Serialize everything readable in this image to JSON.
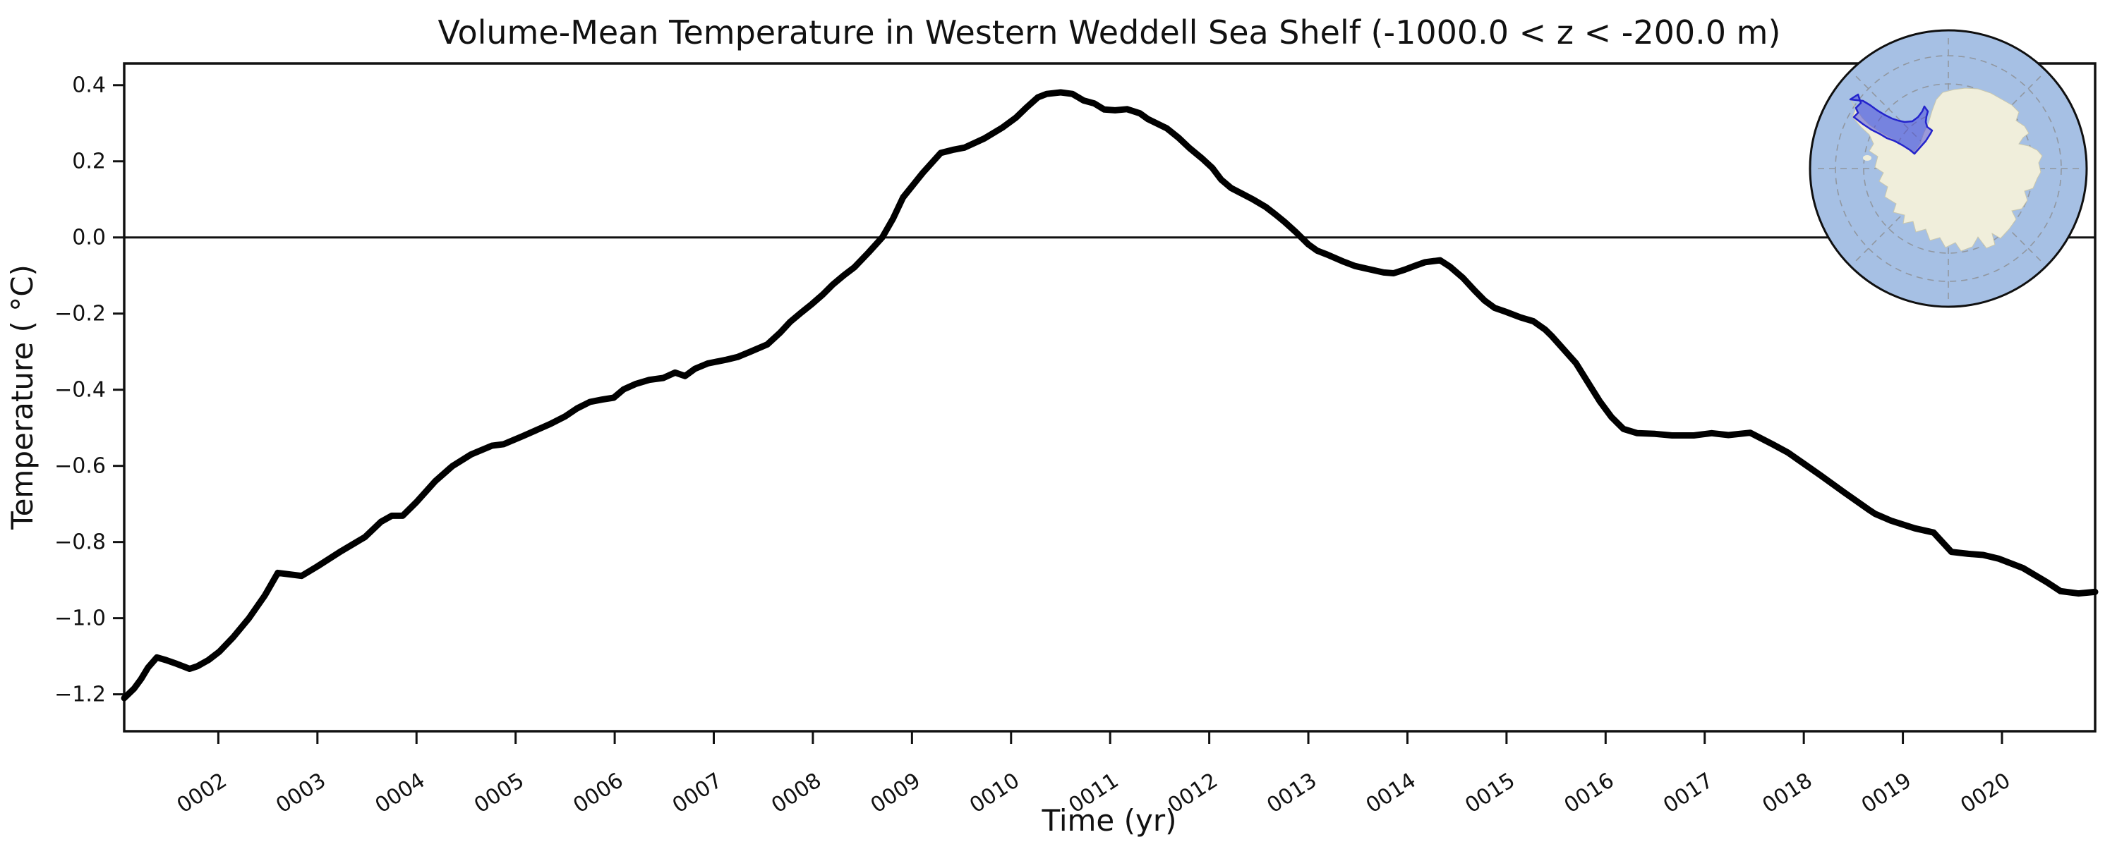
{
  "chart_data": {
    "type": "line",
    "title": "Volume-Mean Temperature in Western Weddell Sea Shelf (-1000.0 < z < -200.0 m)",
    "xlabel": "Time (yr)",
    "ylabel": "Temperature ( °C)",
    "xlim": [
      1.05,
      20.94
    ],
    "ylim": [
      -1.297,
      0.457
    ],
    "grid": false,
    "legend": "none",
    "zero_reference_line": 0.0,
    "line_color": "#000000",
    "x_ticks": [
      2,
      3,
      4,
      5,
      6,
      7,
      8,
      9,
      10,
      11,
      12,
      13,
      14,
      15,
      16,
      17,
      18,
      19,
      20
    ],
    "x_tick_labels": [
      "0002",
      "0003",
      "0004",
      "0005",
      "0006",
      "0007",
      "0008",
      "0009",
      "0010",
      "0011",
      "0012",
      "0013",
      "0014",
      "0015",
      "0016",
      "0017",
      "0018",
      "0019",
      "0020"
    ],
    "y_ticks": [
      0.4,
      0.2,
      0.0,
      -0.2,
      -0.4,
      -0.6,
      -0.8,
      -1.0,
      -1.2
    ],
    "y_tick_labels": [
      "0.4",
      "0.2",
      "0.0",
      "−0.2",
      "−0.4",
      "−0.6",
      "−0.8",
      "−1.0",
      "−1.2"
    ],
    "series": [
      {
        "name": "volume-mean temperature",
        "points": [
          [
            1.05,
            -1.21
          ],
          [
            1.15,
            -1.185
          ],
          [
            1.22,
            -1.16
          ],
          [
            1.29,
            -1.13
          ],
          [
            1.38,
            -1.103
          ],
          [
            1.47,
            -1.11
          ],
          [
            1.58,
            -1.12
          ],
          [
            1.71,
            -1.133
          ],
          [
            1.79,
            -1.126
          ],
          [
            1.9,
            -1.11
          ],
          [
            2.01,
            -1.088
          ],
          [
            2.15,
            -1.05
          ],
          [
            2.31,
            -1.0
          ],
          [
            2.47,
            -0.94
          ],
          [
            2.6,
            -0.881
          ],
          [
            2.72,
            -0.885
          ],
          [
            2.84,
            -0.889
          ],
          [
            3.0,
            -0.864
          ],
          [
            3.24,
            -0.824
          ],
          [
            3.48,
            -0.787
          ],
          [
            3.64,
            -0.747
          ],
          [
            3.75,
            -0.731
          ],
          [
            3.86,
            -0.731
          ],
          [
            4.0,
            -0.695
          ],
          [
            4.19,
            -0.64
          ],
          [
            4.36,
            -0.601
          ],
          [
            4.55,
            -0.57
          ],
          [
            4.76,
            -0.547
          ],
          [
            4.88,
            -0.543
          ],
          [
            5.07,
            -0.522
          ],
          [
            5.35,
            -0.49
          ],
          [
            5.5,
            -0.47
          ],
          [
            5.62,
            -0.449
          ],
          [
            5.75,
            -0.432
          ],
          [
            5.87,
            -0.426
          ],
          [
            5.99,
            -0.421
          ],
          [
            6.09,
            -0.399
          ],
          [
            6.21,
            -0.385
          ],
          [
            6.35,
            -0.374
          ],
          [
            6.49,
            -0.369
          ],
          [
            6.61,
            -0.355
          ],
          [
            6.71,
            -0.364
          ],
          [
            6.81,
            -0.345
          ],
          [
            6.94,
            -0.331
          ],
          [
            7.13,
            -0.321
          ],
          [
            7.24,
            -0.314
          ],
          [
            7.37,
            -0.3
          ],
          [
            7.54,
            -0.281
          ],
          [
            7.67,
            -0.25
          ],
          [
            7.77,
            -0.222
          ],
          [
            7.88,
            -0.198
          ],
          [
            7.99,
            -0.175
          ],
          [
            8.1,
            -0.15
          ],
          [
            8.2,
            -0.124
          ],
          [
            8.31,
            -0.1
          ],
          [
            8.42,
            -0.078
          ],
          [
            8.56,
            -0.04
          ],
          [
            8.7,
            0.0
          ],
          [
            8.81,
            0.05
          ],
          [
            8.91,
            0.105
          ],
          [
            9.11,
            0.17
          ],
          [
            9.29,
            0.222
          ],
          [
            9.41,
            0.23
          ],
          [
            9.53,
            0.236
          ],
          [
            9.73,
            0.26
          ],
          [
            9.91,
            0.288
          ],
          [
            10.05,
            0.315
          ],
          [
            10.15,
            0.34
          ],
          [
            10.27,
            0.368
          ],
          [
            10.36,
            0.377
          ],
          [
            10.5,
            0.381
          ],
          [
            10.62,
            0.377
          ],
          [
            10.73,
            0.36
          ],
          [
            10.84,
            0.352
          ],
          [
            10.94,
            0.336
          ],
          [
            11.05,
            0.334
          ],
          [
            11.17,
            0.337
          ],
          [
            11.3,
            0.326
          ],
          [
            11.38,
            0.311
          ],
          [
            11.57,
            0.287
          ],
          [
            11.69,
            0.262
          ],
          [
            11.8,
            0.235
          ],
          [
            11.93,
            0.207
          ],
          [
            12.03,
            0.183
          ],
          [
            12.12,
            0.152
          ],
          [
            12.22,
            0.13
          ],
          [
            12.33,
            0.115
          ],
          [
            12.44,
            0.1
          ],
          [
            12.57,
            0.08
          ],
          [
            12.67,
            0.06
          ],
          [
            12.76,
            0.041
          ],
          [
            12.87,
            0.015
          ],
          [
            13.0,
            -0.018
          ],
          [
            13.09,
            -0.035
          ],
          [
            13.19,
            -0.045
          ],
          [
            13.35,
            -0.063
          ],
          [
            13.47,
            -0.075
          ],
          [
            13.64,
            -0.085
          ],
          [
            13.76,
            -0.092
          ],
          [
            13.86,
            -0.094
          ],
          [
            13.97,
            -0.085
          ],
          [
            14.08,
            -0.074
          ],
          [
            14.18,
            -0.065
          ],
          [
            14.33,
            -0.06
          ],
          [
            14.43,
            -0.077
          ],
          [
            14.56,
            -0.106
          ],
          [
            14.68,
            -0.14
          ],
          [
            14.78,
            -0.166
          ],
          [
            14.88,
            -0.185
          ],
          [
            14.99,
            -0.195
          ],
          [
            15.14,
            -0.21
          ],
          [
            15.27,
            -0.22
          ],
          [
            15.39,
            -0.242
          ],
          [
            15.46,
            -0.26
          ],
          [
            15.57,
            -0.292
          ],
          [
            15.7,
            -0.33
          ],
          [
            15.82,
            -0.38
          ],
          [
            15.94,
            -0.43
          ],
          [
            16.06,
            -0.472
          ],
          [
            16.18,
            -0.503
          ],
          [
            16.32,
            -0.514
          ],
          [
            16.5,
            -0.516
          ],
          [
            16.67,
            -0.52
          ],
          [
            16.89,
            -0.52
          ],
          [
            17.07,
            -0.514
          ],
          [
            17.24,
            -0.519
          ],
          [
            17.46,
            -0.513
          ],
          [
            17.69,
            -0.544
          ],
          [
            17.84,
            -0.565
          ],
          [
            18.01,
            -0.596
          ],
          [
            18.17,
            -0.625
          ],
          [
            18.41,
            -0.67
          ],
          [
            18.65,
            -0.714
          ],
          [
            18.72,
            -0.726
          ],
          [
            18.88,
            -0.744
          ],
          [
            19.12,
            -0.764
          ],
          [
            19.31,
            -0.775
          ],
          [
            19.49,
            -0.826
          ],
          [
            19.66,
            -0.831
          ],
          [
            19.81,
            -0.834
          ],
          [
            19.97,
            -0.844
          ],
          [
            20.21,
            -0.868
          ],
          [
            20.45,
            -0.905
          ],
          [
            20.59,
            -0.929
          ],
          [
            20.77,
            -0.935
          ],
          [
            20.94,
            -0.931
          ]
        ]
      }
    ]
  },
  "inset_map": {
    "projection": "south-polar-stereographic",
    "ocean_color": "#a6c0e4",
    "land_color": "#f0eedb",
    "highlight_fill": "#4545da",
    "highlight_edge": "#2424cc",
    "graticule_color": "#8a8a8a",
    "outline_color": "#101010"
  }
}
